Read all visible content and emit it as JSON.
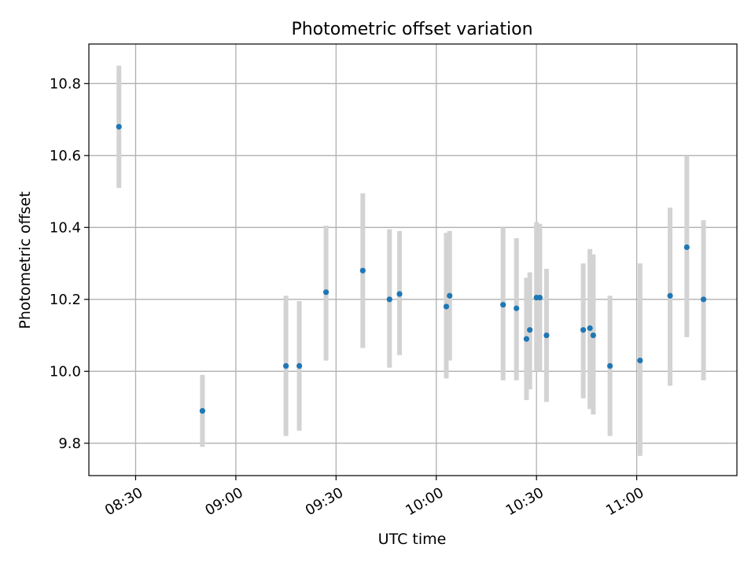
{
  "chart_data": {
    "type": "scatter",
    "title": "Photometric offset variation",
    "xlabel": "UTC time",
    "ylabel": "Photometric offset",
    "x_axis": "time",
    "xlim": [
      "08:16",
      "11:30"
    ],
    "ylim": [
      9.71,
      10.91
    ],
    "grid": true,
    "xticks": [
      "08:30",
      "09:00",
      "09:30",
      "10:00",
      "10:30",
      "11:00"
    ],
    "yticks": [
      9.8,
      10.0,
      10.2,
      10.4,
      10.6,
      10.8
    ],
    "ytick_labels": [
      "9.8",
      "10.0",
      "10.2",
      "10.4",
      "10.6",
      "10.8"
    ],
    "colors": {
      "points": "#1f77b4",
      "errorbars": "#d3d3d3",
      "grid": "#b0b0b0"
    },
    "points": [
      {
        "time": "08:25",
        "y": 10.68,
        "ylow": 10.51,
        "yhigh": 10.85
      },
      {
        "time": "08:50",
        "y": 9.89,
        "ylow": 9.79,
        "yhigh": 9.99
      },
      {
        "time": "09:15",
        "y": 10.015,
        "ylow": 9.82,
        "yhigh": 10.21
      },
      {
        "time": "09:19",
        "y": 10.015,
        "ylow": 9.835,
        "yhigh": 10.195
      },
      {
        "time": "09:27",
        "y": 10.22,
        "ylow": 10.03,
        "yhigh": 10.405
      },
      {
        "time": "09:38",
        "y": 10.28,
        "ylow": 10.065,
        "yhigh": 10.495
      },
      {
        "time": "09:46",
        "y": 10.2,
        "ylow": 10.01,
        "yhigh": 10.395
      },
      {
        "time": "09:49",
        "y": 10.215,
        "ylow": 10.045,
        "yhigh": 10.39
      },
      {
        "time": "10:03",
        "y": 10.18,
        "ylow": 9.98,
        "yhigh": 10.385
      },
      {
        "time": "10:04",
        "y": 10.21,
        "ylow": 10.03,
        "yhigh": 10.39
      },
      {
        "time": "10:20",
        "y": 10.185,
        "ylow": 9.975,
        "yhigh": 10.4
      },
      {
        "time": "10:24",
        "y": 10.175,
        "ylow": 9.975,
        "yhigh": 10.37
      },
      {
        "time": "10:27",
        "y": 10.09,
        "ylow": 9.92,
        "yhigh": 10.26
      },
      {
        "time": "10:28",
        "y": 10.115,
        "ylow": 9.95,
        "yhigh": 10.275
      },
      {
        "time": "10:30",
        "y": 10.205,
        "ylow": 10.0,
        "yhigh": 10.415
      },
      {
        "time": "10:31",
        "y": 10.205,
        "ylow": 10.0,
        "yhigh": 10.41
      },
      {
        "time": "10:33",
        "y": 10.1,
        "ylow": 9.915,
        "yhigh": 10.285
      },
      {
        "time": "10:44",
        "y": 10.115,
        "ylow": 9.925,
        "yhigh": 10.3
      },
      {
        "time": "10:46",
        "y": 10.12,
        "ylow": 9.895,
        "yhigh": 10.34
      },
      {
        "time": "10:47",
        "y": 10.1,
        "ylow": 9.88,
        "yhigh": 10.325
      },
      {
        "time": "10:52",
        "y": 10.015,
        "ylow": 9.82,
        "yhigh": 10.21
      },
      {
        "time": "11:01",
        "y": 10.03,
        "ylow": 9.765,
        "yhigh": 10.3
      },
      {
        "time": "11:10",
        "y": 10.21,
        "ylow": 9.96,
        "yhigh": 10.455
      },
      {
        "time": "11:15",
        "y": 10.345,
        "ylow": 10.095,
        "yhigh": 10.6
      },
      {
        "time": "11:20",
        "y": 10.2,
        "ylow": 9.975,
        "yhigh": 10.42
      }
    ]
  }
}
